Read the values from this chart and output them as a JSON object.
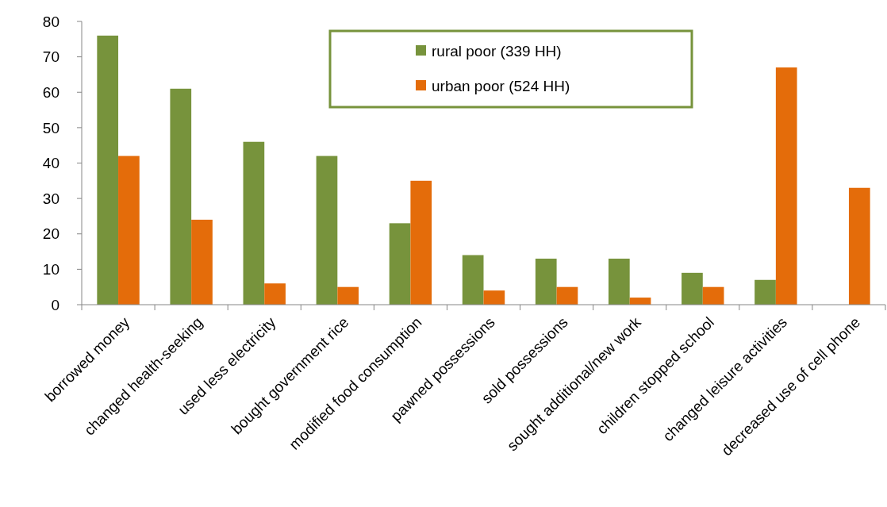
{
  "chart_data": {
    "type": "bar",
    "categories": [
      "borrowed money",
      "changed health-seeking",
      "used less electricity",
      "bought government rice",
      "modified food consumption",
      "pawned possessions",
      "sold possessions",
      "sought additional/new work",
      "children stopped school",
      "changed leisure activities",
      "decreased use of cell phone"
    ],
    "series": [
      {
        "name": "rural poor (339 HH)",
        "color": "#77933c",
        "values": [
          76,
          61,
          46,
          42,
          23,
          14,
          13,
          13,
          9,
          7,
          null
        ]
      },
      {
        "name": "urban poor (524 HH)",
        "color": "#e46c0a",
        "values": [
          42,
          24,
          6,
          5,
          35,
          4,
          5,
          2,
          5,
          67,
          33
        ]
      }
    ],
    "ylim": [
      0,
      80
    ],
    "yticks": [
      0,
      10,
      20,
      30,
      40,
      50,
      60,
      70,
      80
    ],
    "grid": false,
    "legend": "top"
  }
}
